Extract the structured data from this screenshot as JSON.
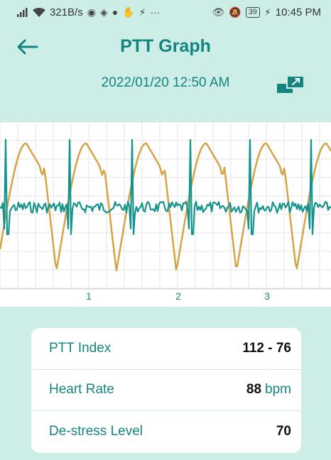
{
  "status_bar": {
    "signal": "321B/s",
    "time": "10:45 PM",
    "battery": "39",
    "icons": [
      "signal-icon",
      "wifi-icon",
      "app-icon",
      "game-icon",
      "messenger-icon",
      "hand-icon",
      "bolt-icon",
      "more-icon",
      "eye-icon",
      "mute-icon",
      "battery-icon",
      "charging-icon"
    ]
  },
  "header": {
    "title": "PTT Graph",
    "back_icon": "arrow-left-icon"
  },
  "date": {
    "text": "2022/01/20 12:50 AM",
    "expand_icon": "expand-icon"
  },
  "graph": {
    "x_labels": [
      "1",
      "2",
      "3"
    ],
    "colors": {
      "ecg": "#14948c",
      "ppg": "#d4a445",
      "grid": "#e5e5e5"
    }
  },
  "metrics": [
    {
      "label": "PTT Index",
      "value": "112 - 76",
      "unit": ""
    },
    {
      "label": "Heart Rate",
      "value": "88",
      "unit": "bpm"
    },
    {
      "label": "De-stress Level",
      "value": "70",
      "unit": ""
    }
  ],
  "colors": {
    "accent": "#14857e",
    "background": "#cdeee6"
  }
}
